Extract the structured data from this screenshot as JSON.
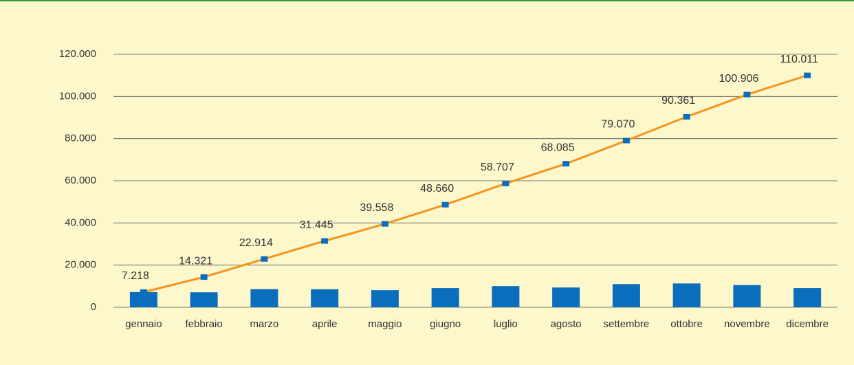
{
  "chart_data": {
    "type": "bar",
    "categories": [
      "gennaio",
      "febbraio",
      "marzo",
      "aprile",
      "maggio",
      "giugno",
      "luglio",
      "agosto",
      "settembre",
      "ottobre",
      "novembre",
      "dicembre"
    ],
    "series": [
      {
        "type": "bar",
        "color": "#0a6ebd",
        "values": [
          7218,
          7103,
          8593,
          8531,
          8113,
          9102,
          10047,
          9378,
          10985,
          11291,
          10545,
          9105
        ]
      },
      {
        "type": "line",
        "color": "#f7941d",
        "marker_color": "#0a6ebd",
        "values": [
          7218,
          14321,
          22914,
          31445,
          39558,
          48660,
          58707,
          68085,
          79070,
          90361,
          100906,
          110011
        ],
        "value_labels": [
          "7.218",
          "14.321",
          "22.914",
          "31.445",
          "39.558",
          "48.660",
          "58.707",
          "68.085",
          "79.070",
          "90.361",
          "100.906",
          "110.011"
        ]
      }
    ],
    "ylim": [
      0,
      120000
    ],
    "yticks": [
      0,
      {
        "value": 20000,
        "label": "20.000"
      },
      {
        "value": 40000,
        "label": "40.000"
      },
      {
        "value": 60000,
        "label": "60.000"
      },
      {
        "value": 80000,
        "label": "80.000"
      },
      {
        "value": 100000,
        "label": "100.000"
      },
      {
        "value": 120000,
        "label": "120.000"
      }
    ],
    "grid": true
  }
}
